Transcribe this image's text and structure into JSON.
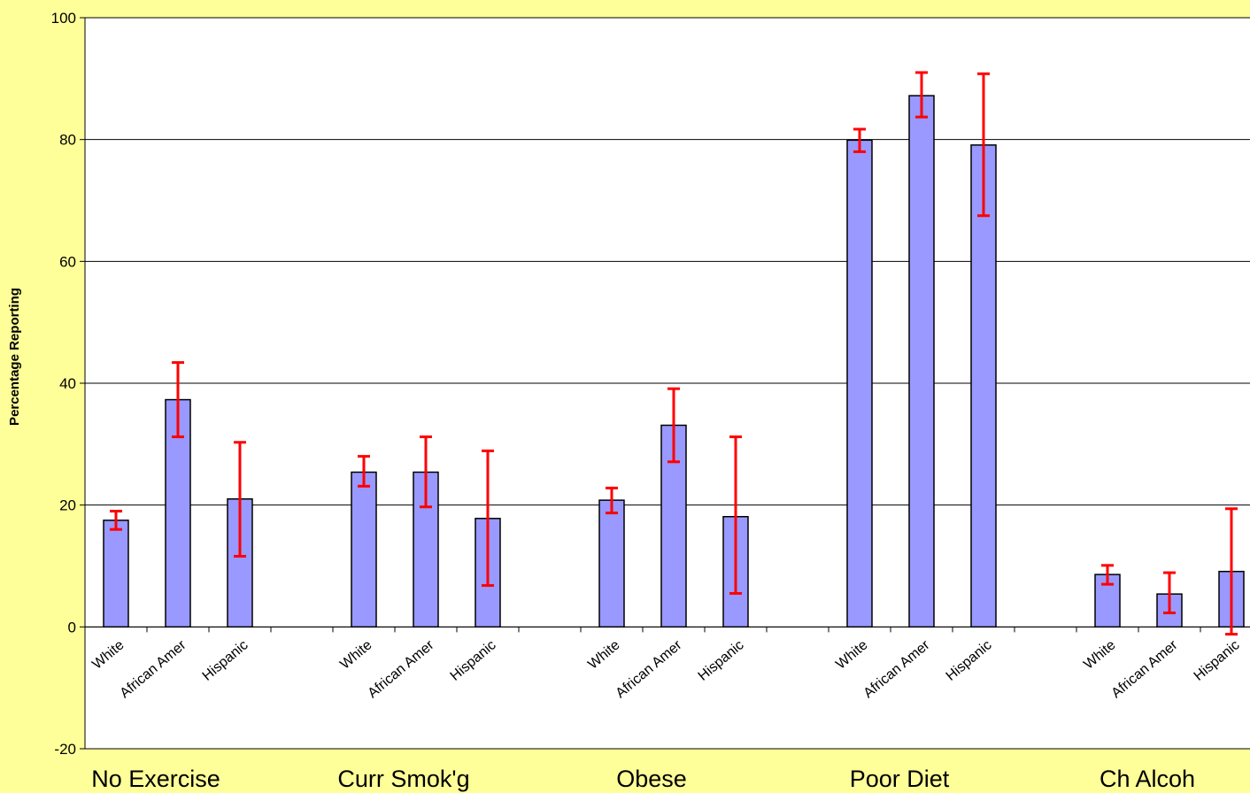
{
  "chart_data": {
    "type": "bar",
    "title": "",
    "xlabel": "",
    "ylabel": "Percentage Reporting",
    "ylim": [
      -20,
      100
    ],
    "yticks": [
      -20,
      0,
      20,
      40,
      60,
      80,
      100
    ],
    "grid": true,
    "legend": "none",
    "colors": {
      "plot_background": "#ffffff",
      "page_background": "#ffff99",
      "bar_fill": "#9999ff",
      "bar_stroke": "#000000",
      "error_bar": "#ff0000",
      "gridline": "#000000"
    },
    "groups": [
      {
        "name": "No Exercise",
        "bars": [
          {
            "category": "White",
            "value": 17.5,
            "err_low": 16.0,
            "err_high": 19.0
          },
          {
            "category": "African Amer",
            "value": 37.3,
            "err_low": 31.2,
            "err_high": 43.4
          },
          {
            "category": "Hispanic",
            "value": 21.0,
            "err_low": 11.6,
            "err_high": 30.3
          }
        ]
      },
      {
        "name": "Curr Smok'g",
        "bars": [
          {
            "category": "White",
            "value": 25.4,
            "err_low": 23.1,
            "err_high": 28.0
          },
          {
            "category": "African Amer",
            "value": 25.4,
            "err_low": 19.7,
            "err_high": 31.2
          },
          {
            "category": "Hispanic",
            "value": 17.8,
            "err_low": 6.8,
            "err_high": 28.9
          }
        ]
      },
      {
        "name": "Obese",
        "bars": [
          {
            "category": "White",
            "value": 20.8,
            "err_low": 18.7,
            "err_high": 22.8
          },
          {
            "category": "African Amer",
            "value": 33.1,
            "err_low": 27.1,
            "err_high": 39.1
          },
          {
            "category": "Hispanic",
            "value": 18.1,
            "err_low": 5.5,
            "err_high": 31.2
          }
        ]
      },
      {
        "name": "Poor Diet",
        "bars": [
          {
            "category": "White",
            "value": 79.9,
            "err_low": 78.0,
            "err_high": 81.7
          },
          {
            "category": "African Amer",
            "value": 87.2,
            "err_low": 83.7,
            "err_high": 91.0
          },
          {
            "category": "Hispanic",
            "value": 79.1,
            "err_low": 67.5,
            "err_high": 90.8
          }
        ]
      },
      {
        "name": "Ch Alcoh",
        "bars": [
          {
            "category": "White",
            "value": 8.6,
            "err_low": 7.0,
            "err_high": 10.1
          },
          {
            "category": "African Amer",
            "value": 5.4,
            "err_low": 2.3,
            "err_high": 8.9
          },
          {
            "category": "Hispanic",
            "value": 9.1,
            "err_low": -1.2,
            "err_high": 19.4
          }
        ]
      }
    ]
  }
}
